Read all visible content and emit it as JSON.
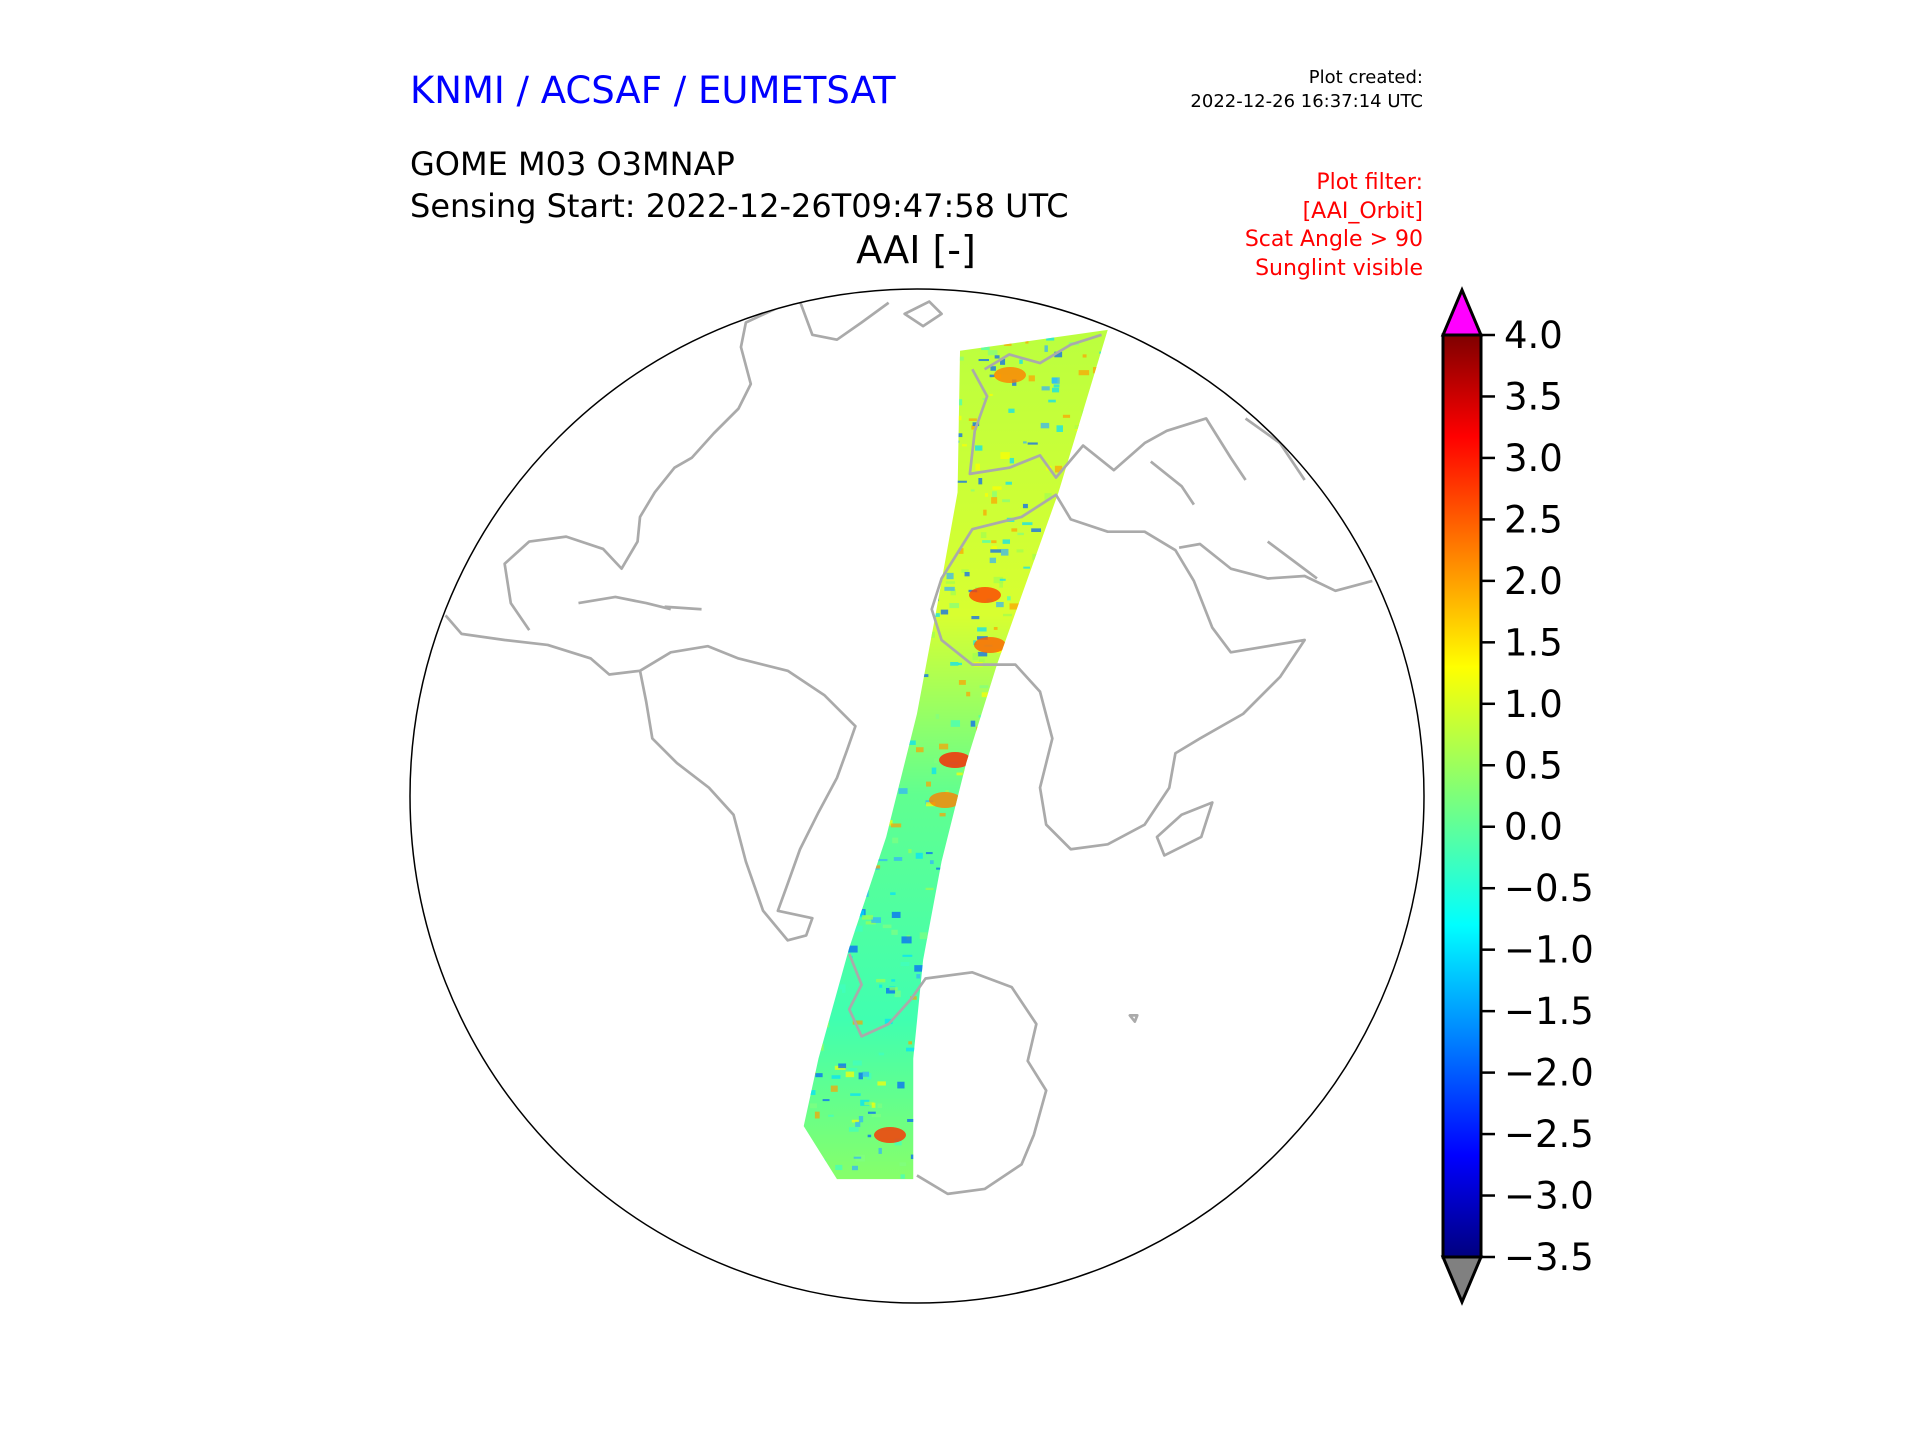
{
  "header": {
    "organization": "KNMI / ACSAF / EUMETSAT",
    "plot_created_label": "Plot created:",
    "plot_created_time": "2022-12-26 16:37:14 UTC",
    "product": "GOME M03 O3MNAP",
    "sensing_start": "Sensing Start: 2022-12-26T09:47:58 UTC",
    "variable_title": "AAI [-]",
    "filter_lines": [
      "Plot filter:",
      "[AAI_Orbit]",
      "Scat Angle > 90",
      "Sunglint visible"
    ]
  },
  "colors": {
    "organization": "#0000ff",
    "filter": "#ff0000",
    "coastline": "#aaaaaa",
    "extend_max": "#ff00ff",
    "extend_min": "#808080"
  },
  "chart_data": {
    "type": "heatmap",
    "title": "AAI [-]",
    "projection": "orthographic (globe centered on the Atlantic)",
    "colormap": "jet",
    "colorbar": {
      "label": "AAI [-]",
      "range": [
        -3.5,
        4.0
      ],
      "ticks": [
        4.0,
        3.5,
        3.0,
        2.5,
        2.0,
        1.5,
        1.0,
        0.5,
        0.0,
        -0.5,
        -1.0,
        -1.5,
        -2.0,
        -2.5,
        -3.0,
        -3.5
      ],
      "tick_labels": [
        "4.0",
        "3.5",
        "3.0",
        "2.5",
        "2.0",
        "1.5",
        "1.0",
        "0.5",
        "0.0",
        "−0.5",
        "−1.0",
        "−1.5",
        "−2.0",
        "−2.5",
        "−3.0",
        "−3.5"
      ],
      "extend": "both"
    },
    "swath_summary": "Single orbit swath from Europe over West Africa and the South Atlantic to Antarctica; values mostly 0 to 1, local highs of 2 to 3.5 over the Sahara and the Gulf of Guinea, lows near -2 to -3 at the swath ends"
  }
}
